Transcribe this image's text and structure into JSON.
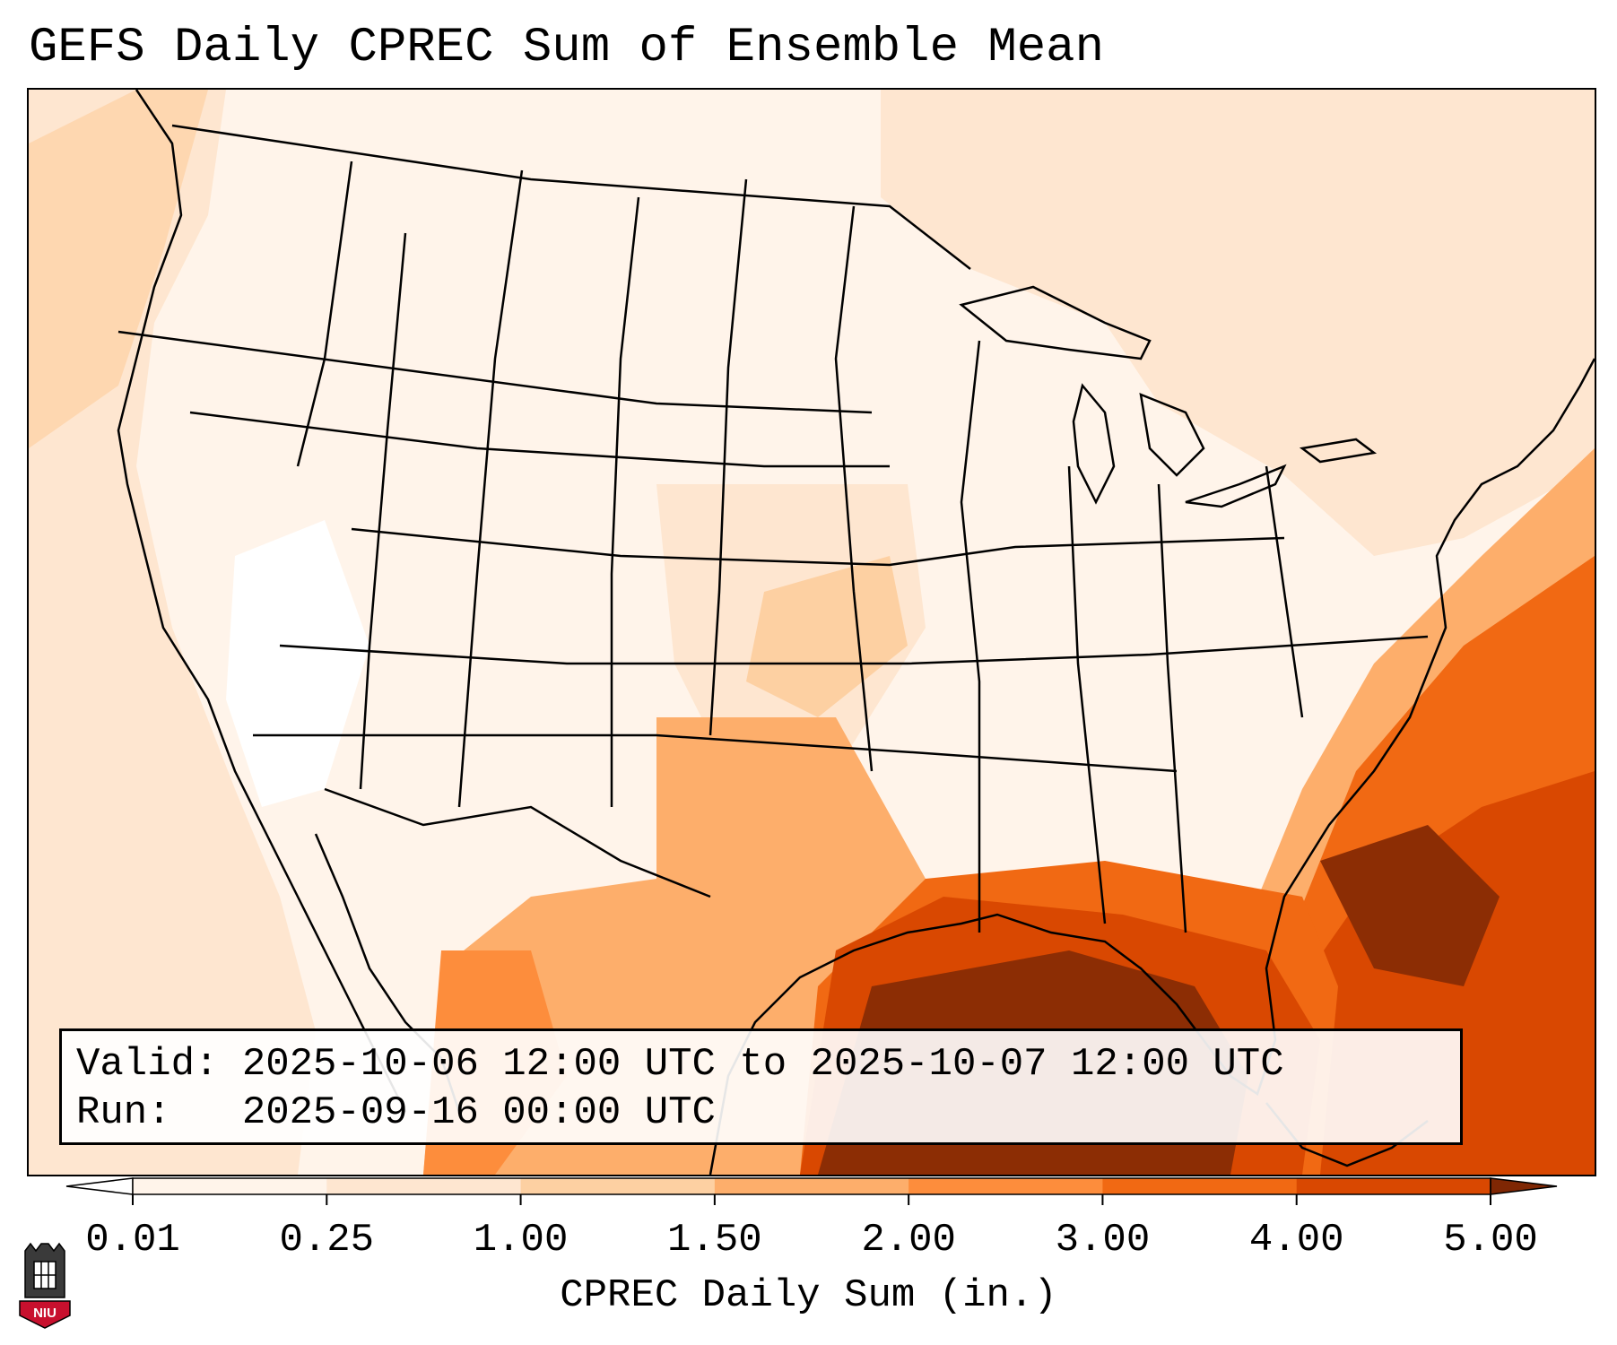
{
  "title": "GEFS Daily CPREC Sum of Ensemble Mean",
  "info": {
    "valid": "Valid: 2025-10-06 12:00 UTC to 2025-10-07 12:00 UTC",
    "run": "Run:   2025-09-16 00:00 UTC"
  },
  "colorbar": {
    "label": "CPREC Daily Sum (in.)",
    "ticks": [
      "0.01",
      "0.25",
      "1.00",
      "1.50",
      "2.00",
      "3.00",
      "4.00",
      "5.00"
    ],
    "colors": [
      "#fff4ea",
      "#fee6d0",
      "#fdd0a2",
      "#fdae6b",
      "#fd8d3c",
      "#f16913",
      "#d94801",
      "#8c2d04"
    ],
    "under_color": "#ffffff",
    "over_color": "#7f2704"
  },
  "logo": {
    "text": "NIU",
    "icon": "niu-castle-icon"
  },
  "map": {
    "layers": [
      "precipitation-shading",
      "coastlines",
      "country-borders",
      "state-borders"
    ]
  }
}
